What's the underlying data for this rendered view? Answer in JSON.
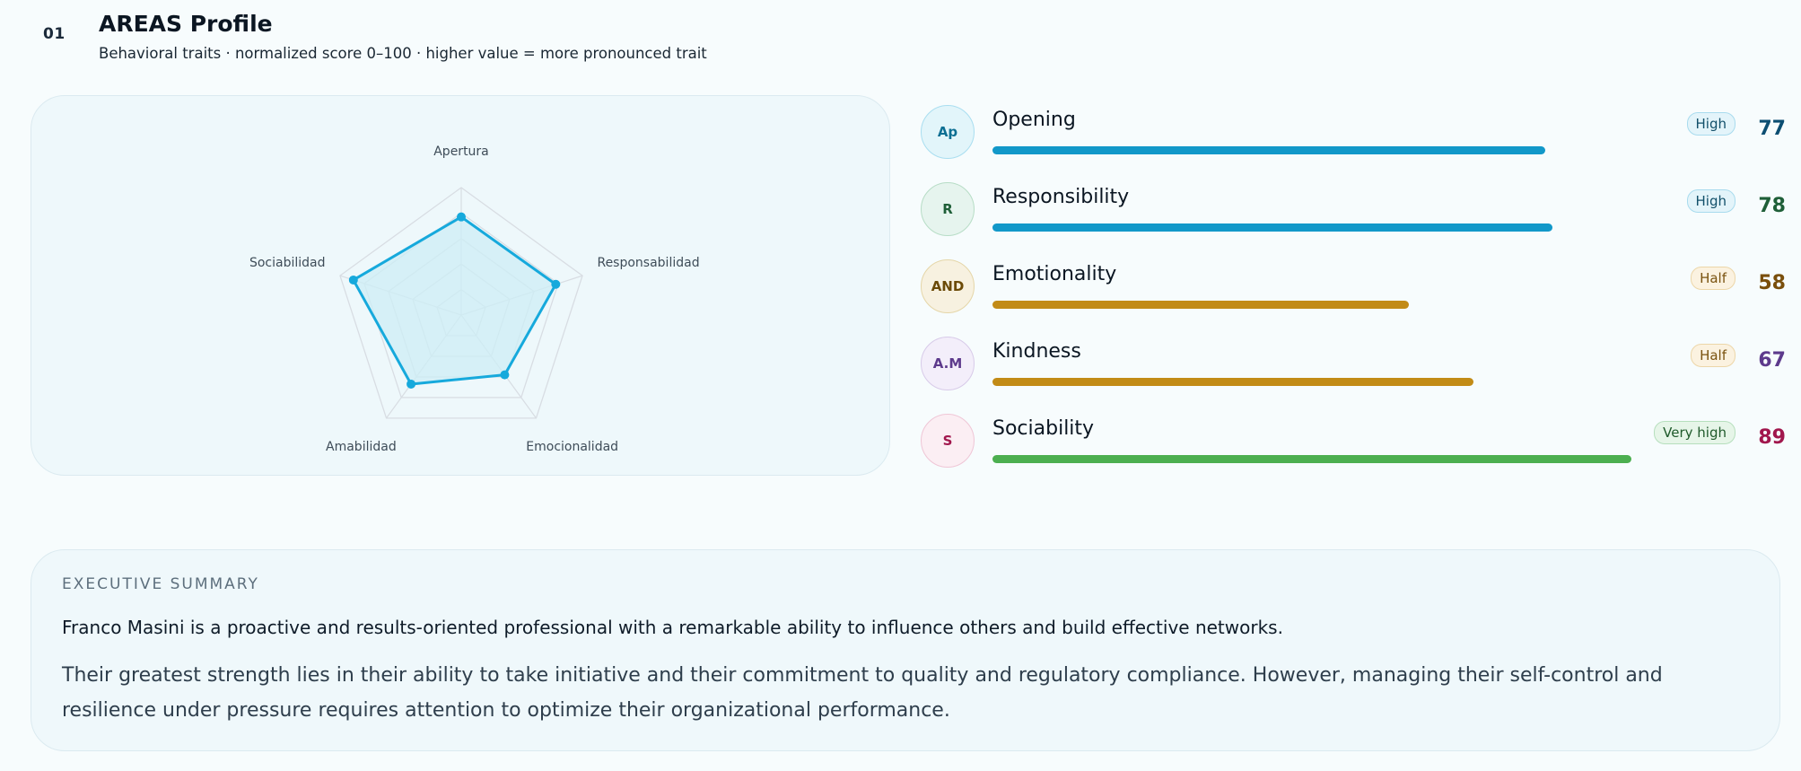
{
  "header": {
    "section_number": "01",
    "title": "AREAS Profile",
    "subtitle": "Behavioral traits · normalized score 0–100 · higher value = more pronounced trait"
  },
  "chart_data": {
    "type": "radar",
    "axes": [
      "Apertura",
      "Responsabilidad",
      "Emocionalidad",
      "Amabilidad",
      "Sociabilidad"
    ],
    "values": [
      77,
      78,
      58,
      67,
      89
    ],
    "range": [
      0,
      100
    ],
    "grid_levels": 5,
    "colors": {
      "line": "#16a9dc",
      "fill": "#cdeef6",
      "grid": "#d8dde3"
    }
  },
  "traits": [
    {
      "abbr": "Ap",
      "name": "Opening",
      "level": "High",
      "value": 77,
      "bar_color": "#1298c9",
      "icon_bg": "#e2f5fa",
      "icon_border": "#a9def0",
      "icon_text": "#0d6f93",
      "badge_bg": "#e3f4fa",
      "badge_border": "#a8dbee",
      "badge_text": "#12506a",
      "value_color": "#0c4e72"
    },
    {
      "abbr": "R",
      "name": "Responsibility",
      "level": "High",
      "value": 78,
      "bar_color": "#1298c9",
      "icon_bg": "#e6f4ee",
      "icon_border": "#b7ddc6",
      "icon_text": "#1f5f38",
      "badge_bg": "#e3f4fa",
      "badge_border": "#a8dbee",
      "badge_text": "#12506a",
      "value_color": "#1f5f38"
    },
    {
      "abbr": "AND",
      "name": "Emotionality",
      "level": "Half",
      "value": 58,
      "bar_color": "#c28b16",
      "icon_bg": "#f7f1e0",
      "icon_border": "#e5d6a8",
      "icon_text": "#6b4a07",
      "badge_bg": "#fbf2e0",
      "badge_border": "#ecd6a8",
      "badge_text": "#7a5310",
      "value_color": "#7a4f0c"
    },
    {
      "abbr": "A.M",
      "name": "Kindness",
      "level": "Half",
      "value": 67,
      "bar_color": "#c28b16",
      "icon_bg": "#f3eefa",
      "icon_border": "#d8cbe9",
      "icon_text": "#5d3a8c",
      "badge_bg": "#fbf2e0",
      "badge_border": "#ecd6a8",
      "badge_text": "#7a5310",
      "value_color": "#5d3a8c"
    },
    {
      "abbr": "S",
      "name": "Sociability",
      "level": "Very high",
      "value": 89,
      "bar_color": "#4caf50",
      "icon_bg": "#fbeef3",
      "icon_border": "#efc6d6",
      "icon_text": "#a1174d",
      "badge_bg": "#e6f5e8",
      "badge_border": "#b6dfbd",
      "badge_text": "#1f5a2b",
      "value_color": "#a1174d"
    }
  ],
  "summary": {
    "heading": "EXECUTIVE SUMMARY",
    "lead": "Franco Masini is a proactive and results-oriented professional with a remarkable ability to influence others and build effective networks.",
    "body": "Their greatest strength lies in their ability to take initiative and their commitment to quality and regulatory compliance. However, managing their self-control and resilience under pressure requires attention to optimize their organizational performance."
  }
}
